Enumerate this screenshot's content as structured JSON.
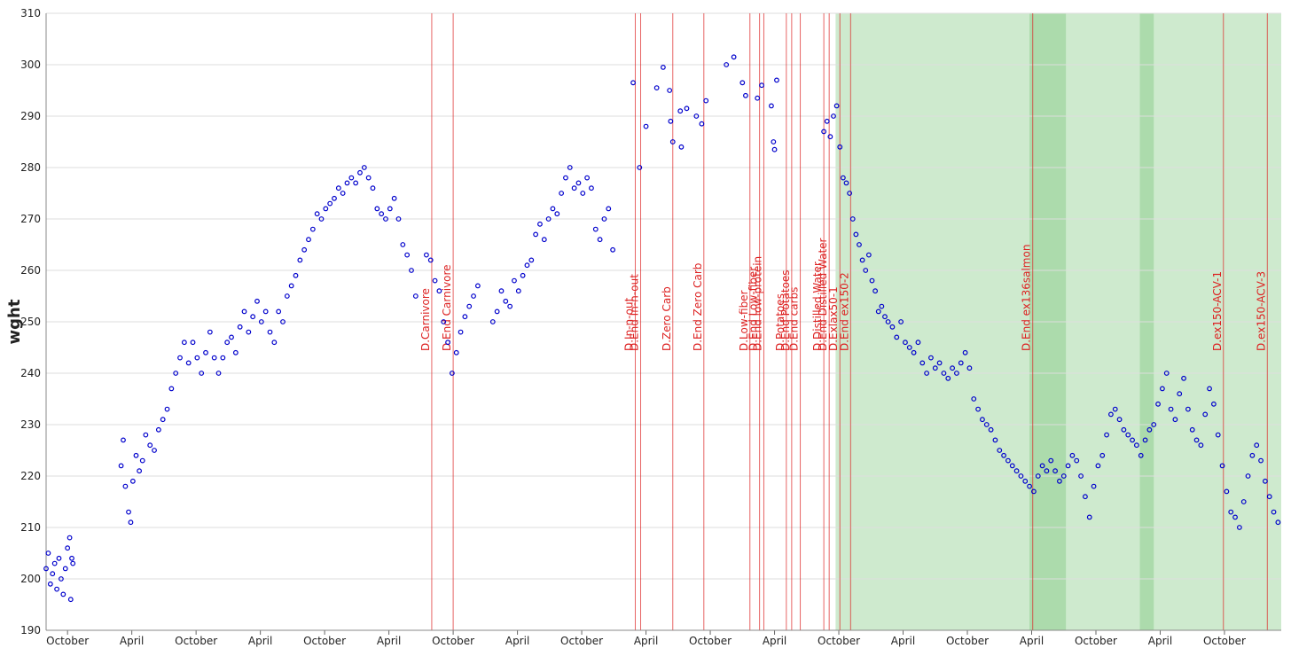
{
  "chart_data": {
    "type": "scatter",
    "y_label": "wght",
    "ylim": [
      190,
      310
    ],
    "yticks": [
      190,
      200,
      210,
      220,
      230,
      240,
      250,
      260,
      270,
      280,
      290,
      300,
      310
    ],
    "xlim": [
      4,
      119.3
    ],
    "xticks": [
      {
        "value": 6,
        "label": "October"
      },
      {
        "value": 12,
        "label": "April"
      },
      {
        "value": 18,
        "label": "October"
      },
      {
        "value": 24,
        "label": "April"
      },
      {
        "value": 30,
        "label": "October"
      },
      {
        "value": 36,
        "label": "April"
      },
      {
        "value": 42,
        "label": "October"
      },
      {
        "value": 48,
        "label": "April"
      },
      {
        "value": 54,
        "label": "October"
      },
      {
        "value": 60,
        "label": "April"
      },
      {
        "value": 66,
        "label": "October"
      },
      {
        "value": 72,
        "label": "April"
      },
      {
        "value": 78,
        "label": "October"
      },
      {
        "value": 84,
        "label": "April"
      },
      {
        "value": 90,
        "label": "October"
      },
      {
        "value": 96,
        "label": "April"
      },
      {
        "value": 102,
        "label": "October"
      },
      {
        "value": 108,
        "label": "April"
      },
      {
        "value": 114,
        "label": "October"
      }
    ],
    "grid": true,
    "point_color": "#0000cc",
    "annotation_color": "#dd2222",
    "span_color": "#5cb85c",
    "spans": [
      [
        77.7,
        119.3
      ],
      [
        95.8,
        99.2
      ],
      [
        106.1,
        107.4
      ]
    ],
    "annotations": [
      {
        "x": 40.0,
        "label": "D.Carnivore"
      },
      {
        "x": 42.0,
        "label": "D.End Carnivore"
      },
      {
        "x": 59.0,
        "label": "D.In-n-out"
      },
      {
        "x": 59.5,
        "label": "D.End In-n-out"
      },
      {
        "x": 62.5,
        "label": "D.Zero Carb"
      },
      {
        "x": 65.4,
        "label": "D.End Zero Carb"
      },
      {
        "x": 69.7,
        "label": "D.Low-fiber"
      },
      {
        "x": 70.6,
        "label": "D.End Low-fiber"
      },
      {
        "x": 71.0,
        "label": "D.End low-protein"
      },
      {
        "x": 73.1,
        "label": "D.Potatoes"
      },
      {
        "x": 73.6,
        "label": "D.End Potatoes"
      },
      {
        "x": 74.4,
        "label": "D.End carbs"
      },
      {
        "x": 76.6,
        "label": "D.Distilled Water"
      },
      {
        "x": 77.1,
        "label": "D.End Distilled Water"
      },
      {
        "x": 78.1,
        "label": "D.Exlax50-1"
      },
      {
        "x": 79.1,
        "label": "D.End ex150-2"
      },
      {
        "x": 96.1,
        "label": "D.End ex136salmon"
      },
      {
        "x": 113.9,
        "label": "D.ex150-ACV-1"
      },
      {
        "x": 118.0,
        "label": "D.ex150-ACV-3"
      }
    ],
    "x": [
      4.0,
      4.2,
      4.4,
      4.6,
      4.8,
      5.0,
      5.2,
      5.4,
      5.6,
      5.8,
      6.0,
      6.2,
      6.3,
      6.4,
      6.5,
      11.0,
      11.2,
      11.4,
      11.7,
      11.9,
      12.1,
      12.4,
      12.7,
      13.0,
      13.3,
      13.7,
      14.1,
      14.5,
      14.9,
      15.3,
      15.7,
      16.1,
      16.5,
      16.9,
      17.3,
      17.7,
      18.1,
      18.5,
      18.9,
      19.3,
      19.7,
      20.1,
      20.5,
      20.9,
      21.3,
      21.7,
      22.1,
      22.5,
      22.9,
      23.3,
      23.7,
      24.1,
      24.5,
      24.9,
      25.3,
      25.7,
      26.1,
      26.5,
      26.9,
      27.3,
      27.7,
      28.1,
      28.5,
      28.9,
      29.3,
      29.7,
      30.1,
      30.5,
      30.9,
      31.3,
      31.7,
      32.1,
      32.5,
      32.9,
      33.3,
      33.7,
      34.1,
      34.5,
      34.9,
      35.3,
      35.7,
      36.1,
      36.5,
      36.9,
      37.3,
      37.7,
      38.1,
      38.5,
      39.5,
      39.9,
      40.3,
      40.7,
      41.1,
      41.5,
      41.9,
      42.3,
      42.7,
      43.1,
      43.5,
      43.9,
      44.3,
      45.7,
      46.1,
      46.5,
      46.9,
      47.3,
      47.7,
      48.1,
      48.5,
      48.9,
      49.3,
      49.7,
      50.1,
      50.5,
      50.9,
      51.3,
      51.7,
      52.1,
      52.5,
      52.9,
      53.3,
      53.7,
      54.1,
      54.5,
      54.9,
      55.3,
      55.7,
      56.1,
      56.5,
      56.9,
      58.8,
      59.4,
      60.0,
      61.0,
      61.6,
      62.2,
      62.3,
      62.5,
      63.2,
      63.3,
      63.8,
      64.7,
      65.2,
      65.6,
      67.5,
      68.2,
      69.0,
      69.3,
      70.4,
      70.8,
      71.7,
      71.9,
      72.0,
      72.2,
      76.6,
      76.9,
      77.2,
      77.5,
      77.8,
      78.1,
      78.4,
      78.7,
      79.0,
      79.3,
      79.6,
      79.9,
      80.2,
      80.5,
      80.8,
      81.1,
      81.4,
      81.7,
      82.0,
      82.3,
      82.6,
      83.0,
      83.4,
      83.8,
      84.2,
      84.6,
      85.0,
      85.4,
      85.8,
      86.2,
      86.6,
      87.0,
      87.4,
      87.8,
      88.2,
      88.6,
      89.0,
      89.4,
      89.8,
      90.2,
      90.6,
      91.0,
      91.4,
      91.8,
      92.2,
      92.6,
      93.0,
      93.4,
      93.8,
      94.2,
      94.6,
      95.0,
      95.4,
      95.8,
      96.2,
      96.6,
      97.0,
      97.4,
      97.8,
      98.2,
      98.6,
      99.0,
      99.4,
      99.8,
      100.2,
      100.6,
      101.0,
      101.4,
      101.8,
      102.2,
      102.6,
      103.0,
      103.4,
      103.8,
      104.2,
      104.6,
      105.0,
      105.4,
      105.8,
      106.2,
      106.6,
      107.0,
      107.4,
      107.8,
      108.2,
      108.6,
      109.0,
      109.4,
      109.8,
      110.2,
      110.6,
      111.0,
      111.4,
      111.8,
      112.2,
      112.6,
      113.0,
      113.4,
      113.8,
      114.2,
      114.6,
      115.0,
      115.4,
      115.8,
      116.2,
      116.6,
      117.0,
      117.4,
      117.8,
      118.2,
      118.6,
      119.0
    ],
    "values": [
      202,
      205,
      199,
      201,
      203,
      198,
      204,
      200,
      197,
      202,
      206,
      208,
      196,
      204,
      203,
      222,
      227,
      218,
      213,
      211,
      219,
      224,
      221,
      223,
      228,
      226,
      225,
      229,
      231,
      233,
      237,
      240,
      243,
      246,
      242,
      246,
      243,
      240,
      244,
      248,
      243,
      240,
      243,
      246,
      247,
      244,
      249,
      252,
      248,
      251,
      254,
      250,
      252,
      248,
      246,
      252,
      250,
      255,
      257,
      259,
      262,
      264,
      266,
      268,
      271,
      270,
      272,
      273,
      274,
      276,
      275,
      277,
      278,
      277,
      279,
      280,
      278,
      276,
      272,
      271,
      270,
      272,
      274,
      270,
      265,
      263,
      260,
      255,
      263,
      262,
      258,
      256,
      250,
      246,
      240,
      244,
      248,
      251,
      253,
      255,
      257,
      250,
      252,
      256,
      254,
      253,
      258,
      256,
      259,
      261,
      262,
      267,
      269,
      266,
      270,
      272,
      271,
      275,
      278,
      280,
      276,
      277,
      275,
      278,
      276,
      268,
      266,
      270,
      272,
      264,
      296.5,
      280,
      288,
      295.5,
      299.5,
      295,
      289,
      285,
      291,
      284,
      291.5,
      290,
      288.5,
      293,
      300,
      301.5,
      296.5,
      294,
      293.5,
      296,
      292,
      285,
      283.5,
      297,
      287,
      289,
      286,
      290,
      292,
      284,
      278,
      277,
      275,
      270,
      267,
      265,
      262,
      260,
      263,
      258,
      256,
      252,
      253,
      251,
      250,
      249,
      247,
      250,
      246,
      245,
      244,
      246,
      242,
      240,
      243,
      241,
      242,
      240,
      239,
      241,
      240,
      242,
      244,
      241,
      235,
      233,
      231,
      230,
      229,
      227,
      225,
      224,
      223,
      222,
      221,
      220,
      219,
      218,
      217,
      220,
      222,
      221,
      223,
      221,
      219,
      220,
      222,
      224,
      223,
      220,
      216,
      212,
      218,
      222,
      224,
      228,
      232,
      233,
      231,
      229,
      228,
      227,
      226,
      224,
      227,
      229,
      230,
      234,
      237,
      240,
      233,
      231,
      236,
      239,
      233,
      229,
      227,
      226,
      232,
      237,
      234,
      228,
      222,
      217,
      213,
      212,
      210,
      215,
      220,
      224,
      226,
      223,
      219,
      216,
      213,
      211
    ]
  }
}
